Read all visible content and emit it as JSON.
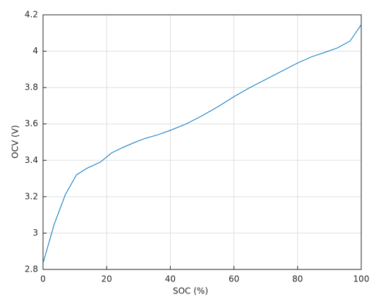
{
  "chart_data": {
    "type": "line",
    "x_label": "SOC (%)",
    "y_label": "OCV (V)",
    "x": [
      0,
      3.5,
      7,
      10.5,
      14,
      18,
      21.5,
      25,
      29,
      32,
      36,
      40,
      45,
      50,
      55,
      60,
      65,
      70,
      75,
      80,
      84.5,
      88,
      92.5,
      96.5,
      100
    ],
    "series": [
      {
        "color": "#0072bd",
        "values": [
          2.835,
          3.048,
          3.211,
          3.32,
          3.358,
          3.39,
          3.44,
          3.47,
          3.5,
          3.52,
          3.54,
          3.565,
          3.6,
          3.645,
          3.695,
          3.75,
          3.8,
          3.845,
          3.89,
          3.935,
          3.97,
          3.99,
          4.018,
          4.056,
          4.146
        ]
      }
    ],
    "xlim": [
      0,
      100
    ],
    "xticks": [
      0,
      20,
      40,
      60,
      80,
      100
    ],
    "ylim": [
      2.8,
      4.2
    ],
    "yticks": [
      2.8,
      3,
      3.2,
      3.4,
      3.6,
      3.8,
      4,
      4.2
    ],
    "grid": true
  }
}
